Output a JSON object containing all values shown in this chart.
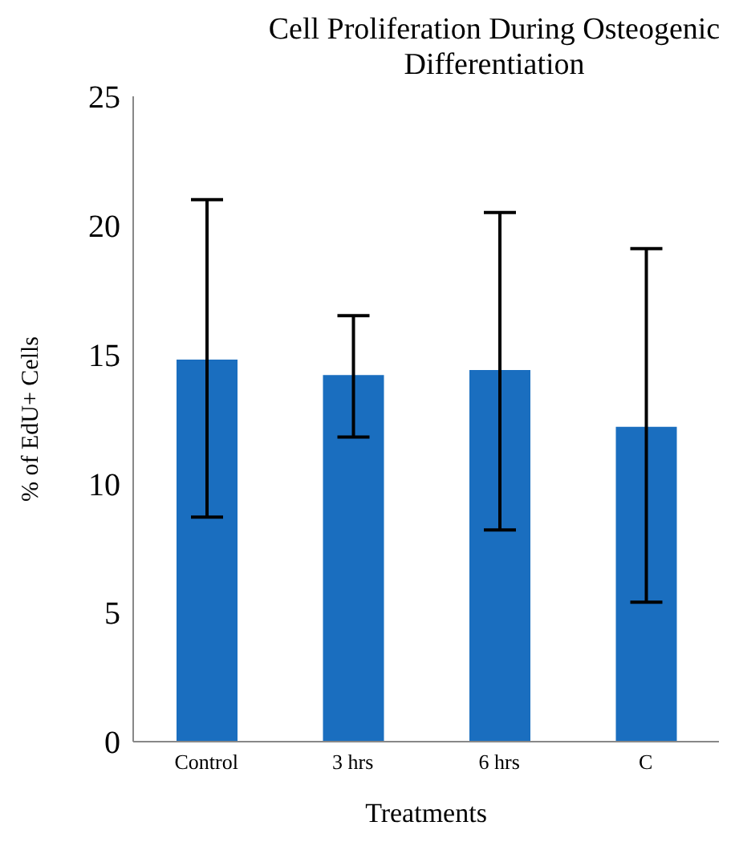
{
  "chart_data": {
    "type": "bar",
    "title": "Cell Proliferation During Osteogenic Differentiation",
    "xlabel": "Treatments",
    "ylabel": "% of EdU+ Cells",
    "categories": [
      "Control",
      "3 hrs",
      "6 hrs",
      "C"
    ],
    "series": [
      {
        "color": "#1a6ebf",
        "values": [
          14.8,
          14.2,
          14.4,
          12.2
        ],
        "errors": [
          [
            8.7,
            21.0
          ],
          [
            11.8,
            16.5
          ],
          [
            8.2,
            20.5
          ],
          [
            5.4,
            19.1
          ]
        ]
      }
    ],
    "ylim": [
      0,
      25
    ],
    "yticks": [
      0,
      5,
      10,
      15,
      20,
      25
    ],
    "grid": false,
    "legend": false
  }
}
